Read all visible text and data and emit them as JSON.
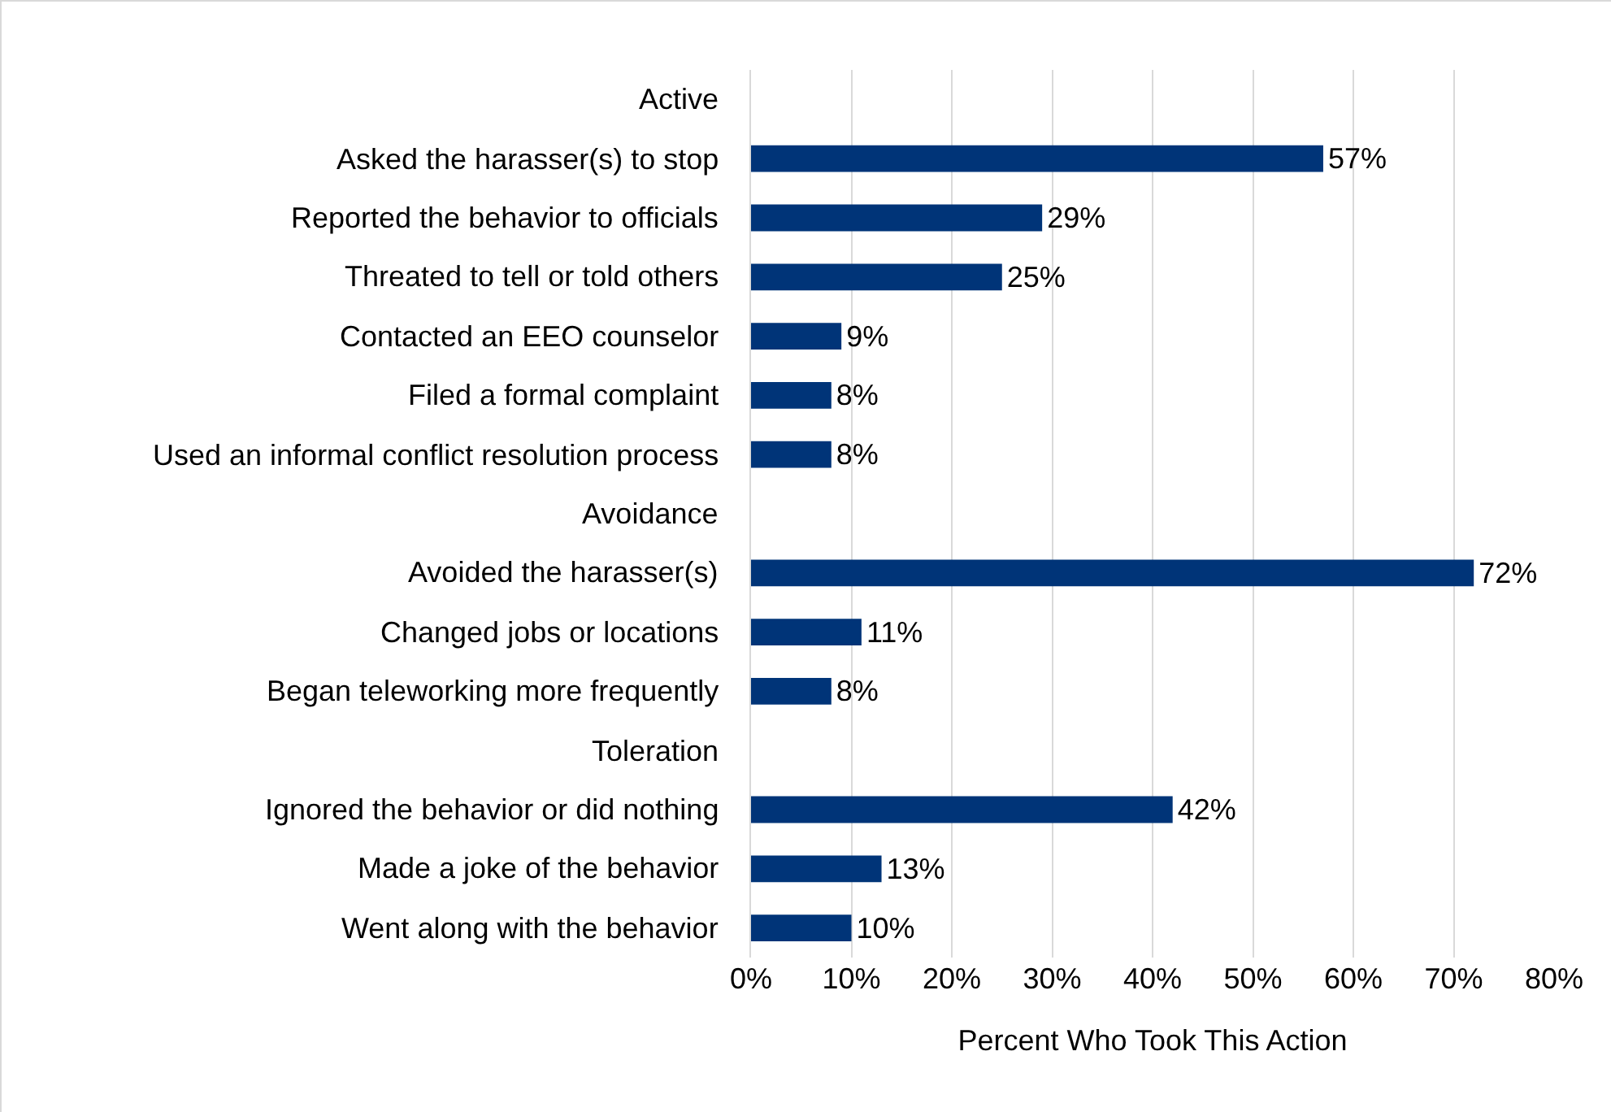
{
  "chart_data": {
    "type": "bar",
    "orientation": "horizontal",
    "xlabel": "Percent Who Took This Action",
    "categories": [
      "Active",
      "Asked the harasser(s) to stop",
      "Reported the behavior to officials",
      "Threated to tell or told others",
      "Contacted an EEO counselor",
      "Filed a formal complaint",
      "Used an informal conflict resolution process",
      "Avoidance",
      "Avoided the harasser(s)",
      "Changed jobs or locations",
      "Began teleworking more frequently",
      "Toleration",
      "Ignored the behavior or did nothing",
      "Made a joke of the behavior",
      "Went along with the behavior"
    ],
    "values": [
      null,
      57,
      29,
      25,
      9,
      8,
      8,
      null,
      72,
      11,
      8,
      null,
      42,
      13,
      10
    ],
    "value_labels": [
      null,
      "57%",
      "29%",
      "25%",
      "9%",
      "8%",
      "8%",
      null,
      "72%",
      "11%",
      "8%",
      null,
      "42%",
      "13%",
      "10%"
    ],
    "color": "#003478",
    "xlim": [
      0,
      80
    ],
    "xticks": [
      {
        "value": 0,
        "label": "0%"
      },
      {
        "value": 10,
        "label": "10%"
      },
      {
        "value": 20,
        "label": "20%"
      },
      {
        "value": 30,
        "label": "30%"
      },
      {
        "value": 40,
        "label": "40%"
      },
      {
        "value": 50,
        "label": "50%"
      },
      {
        "value": 60,
        "label": "60%"
      },
      {
        "value": 70,
        "label": "70%"
      },
      {
        "value": 80,
        "label": "80%"
      }
    ],
    "grid": "x"
  }
}
